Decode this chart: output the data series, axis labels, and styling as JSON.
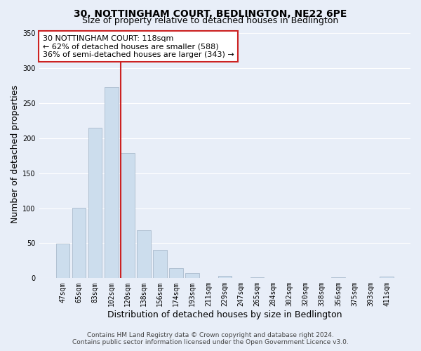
{
  "title": "30, NOTTINGHAM COURT, BEDLINGTON, NE22 6PE",
  "subtitle": "Size of property relative to detached houses in Bedlington",
  "xlabel": "Distribution of detached houses by size in Bedlington",
  "ylabel": "Number of detached properties",
  "bar_labels": [
    "47sqm",
    "65sqm",
    "83sqm",
    "102sqm",
    "120sqm",
    "138sqm",
    "156sqm",
    "174sqm",
    "193sqm",
    "211sqm",
    "229sqm",
    "247sqm",
    "265sqm",
    "284sqm",
    "302sqm",
    "320sqm",
    "338sqm",
    "356sqm",
    "375sqm",
    "393sqm",
    "411sqm"
  ],
  "bar_values": [
    49,
    101,
    215,
    273,
    179,
    69,
    40,
    14,
    7,
    0,
    3,
    0,
    1,
    0,
    0,
    0,
    0,
    1,
    0,
    0,
    2
  ],
  "bar_color": "#ccdded",
  "bar_edge_color": "#aabbcc",
  "reference_line_color": "#cc2222",
  "annotation_title": "30 NOTTINGHAM COURT: 118sqm",
  "annotation_line1": "← 62% of detached houses are smaller (588)",
  "annotation_line2": "36% of semi-detached houses are larger (343) →",
  "annotation_box_facecolor": "white",
  "annotation_box_edgecolor": "#cc2222",
  "ylim": [
    0,
    355
  ],
  "yticks": [
    0,
    50,
    100,
    150,
    200,
    250,
    300,
    350
  ],
  "fig_facecolor": "#e8eef8",
  "plot_facecolor": "#e8eef8",
  "grid_color": "white",
  "title_fontsize": 10,
  "subtitle_fontsize": 9,
  "axis_label_fontsize": 9,
  "tick_fontsize": 7,
  "annotation_fontsize": 8,
  "footer_fontsize": 6.5,
  "footer1": "Contains HM Land Registry data © Crown copyright and database right 2024.",
  "footer2": "Contains public sector information licensed under the Open Government Licence v3.0."
}
